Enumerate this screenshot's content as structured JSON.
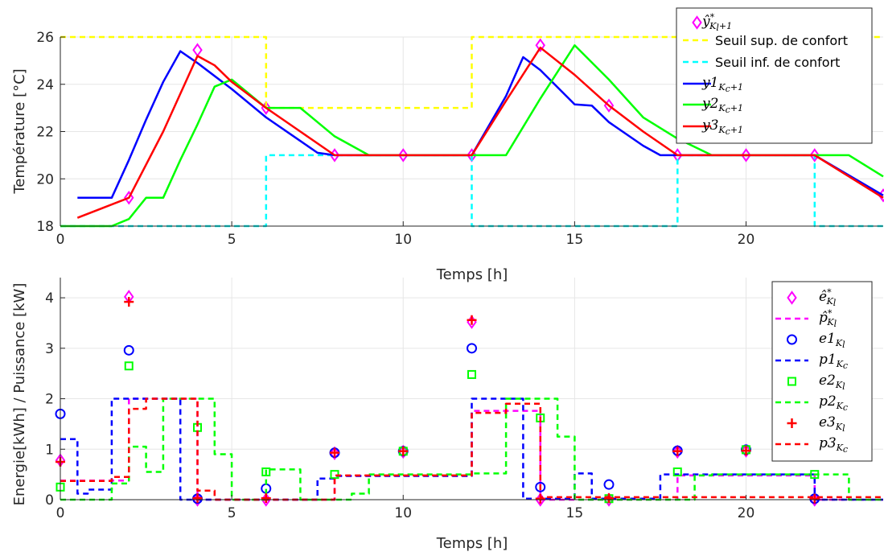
{
  "chart_data": [
    {
      "type": "line",
      "xlabel": "Temps [h]",
      "ylabel": "Température [°C]",
      "xlim": [
        0,
        24
      ],
      "ylim": [
        18,
        26
      ],
      "xticks": [
        0,
        5,
        10,
        15,
        20
      ],
      "yticks": [
        18,
        20,
        22,
        24,
        26
      ],
      "grid": true,
      "legend_position": "top-right",
      "series": [
        {
          "id": "yhat",
          "style": "markers",
          "marker": "diamond",
          "color": "#ff00ff",
          "legend": {
            "base": "ŷ",
            "sup": "*",
            "sub": "K",
            "subsub": "l",
            "tail": "+1"
          },
          "x": [
            2,
            4,
            6,
            8,
            10,
            12,
            14,
            16,
            18,
            20,
            22,
            24
          ],
          "y": [
            19.2,
            25.45,
            23.0,
            21.0,
            21.0,
            21.0,
            25.65,
            23.1,
            21.0,
            21.0,
            21.0,
            19.3
          ]
        },
        {
          "id": "seuil_sup",
          "style": "dashed",
          "color": "#ffff00",
          "legend_text": "Seuil sup. de confort",
          "x": [
            0,
            6,
            6,
            12,
            12,
            24
          ],
          "y": [
            26,
            26,
            23,
            23,
            26,
            26
          ]
        },
        {
          "id": "seuil_inf",
          "style": "dashed",
          "color": "#00ffff",
          "legend_text": "Seuil inf. de confort",
          "x": [
            0,
            6,
            6,
            12,
            12,
            18,
            18,
            22,
            22,
            24
          ],
          "y": [
            18,
            18,
            21,
            21,
            18,
            18,
            21,
            21,
            18,
            18
          ]
        },
        {
          "id": "y1",
          "style": "solid",
          "color": "#0000ff",
          "legend": {
            "base": "y1",
            "sub": "K",
            "subsub": "c",
            "tail": "+1"
          },
          "x": [
            0.5,
            1.5,
            2,
            2.5,
            3,
            3.5,
            4,
            5,
            6,
            7,
            7.5,
            8,
            12,
            13,
            13.5,
            14,
            15,
            15.5,
            16,
            17,
            17.5,
            18,
            22,
            24
          ],
          "y": [
            19.2,
            19.2,
            20.8,
            22.5,
            24.1,
            25.4,
            24.9,
            23.8,
            22.6,
            21.6,
            21.1,
            21.0,
            21.0,
            23.5,
            25.15,
            24.6,
            23.15,
            23.1,
            22.4,
            21.4,
            21.0,
            21.0,
            21.0,
            19.3
          ]
        },
        {
          "id": "y2",
          "style": "solid",
          "color": "#00ff00",
          "legend": {
            "base": "y2",
            "sub": "K",
            "subsub": "c",
            "tail": "+1"
          },
          "x": [
            0,
            0.8,
            1.5,
            2,
            2.5,
            3,
            3.5,
            4,
            4.5,
            5,
            6,
            7,
            8,
            9,
            12,
            13,
            14,
            15,
            16,
            17,
            18,
            19,
            22,
            23,
            24
          ],
          "y": [
            18.0,
            18.0,
            18.0,
            18.3,
            19.2,
            19.2,
            20.8,
            22.3,
            23.9,
            24.2,
            23.0,
            23.0,
            21.8,
            21.0,
            21.0,
            21.0,
            23.4,
            25.65,
            24.2,
            22.6,
            21.7,
            21.0,
            21.0,
            21.0,
            20.1
          ]
        },
        {
          "id": "y3",
          "style": "solid",
          "color": "#ff0000",
          "legend": {
            "base": "y3",
            "sub": "K",
            "subsub": "c",
            "tail": "+1"
          },
          "x": [
            0.5,
            2,
            3,
            4,
            4.5,
            5,
            6,
            7,
            8,
            12,
            13,
            14,
            15,
            16,
            17,
            18,
            22,
            24
          ],
          "y": [
            18.35,
            19.2,
            22.0,
            25.2,
            24.8,
            24.1,
            23.0,
            22.0,
            21.0,
            21.0,
            23.3,
            25.55,
            24.4,
            23.1,
            22.0,
            21.0,
            21.0,
            19.2
          ]
        }
      ]
    },
    {
      "type": "line",
      "xlabel": "Temps [h]",
      "ylabel": "Energie[kWh] / Puissance [kW]",
      "xlim": [
        0,
        24
      ],
      "ylim": [
        0,
        4.4
      ],
      "xticks": [
        0,
        5,
        10,
        15,
        20
      ],
      "yticks": [
        0,
        1,
        2,
        3,
        4
      ],
      "grid": true,
      "legend_position": "top-right",
      "series": [
        {
          "id": "ehat",
          "style": "markers",
          "marker": "diamond",
          "color": "#ff00ff",
          "legend": {
            "base": "ê",
            "sup": "*",
            "sub": "K",
            "subsub": "l"
          },
          "x": [
            0,
            2,
            4,
            6,
            8,
            10,
            12,
            14,
            16,
            18,
            20,
            22
          ],
          "y": [
            0.78,
            4.02,
            0.0,
            0.0,
            0.92,
            0.95,
            3.52,
            0.0,
            0.0,
            0.95,
            0.97,
            0.0
          ]
        },
        {
          "id": "phat",
          "style": "dashed",
          "color": "#ff00ff",
          "legend": {
            "base": "p̂",
            "sup": "*",
            "sub": "K",
            "subsub": "l"
          },
          "x": [
            0,
            1.5,
            1.5,
            2,
            2,
            4,
            4,
            8,
            8,
            12,
            12,
            14,
            14,
            18,
            18,
            22,
            22,
            24
          ],
          "y": [
            0.38,
            0.38,
            0.38,
            0.38,
            2.0,
            2.0,
            0.0,
            0.0,
            0.47,
            0.47,
            1.76,
            1.76,
            0.0,
            0.0,
            0.48,
            0.48,
            0.0,
            0.0
          ]
        },
        {
          "id": "e1",
          "style": "markers",
          "marker": "circle",
          "color": "#0000ff",
          "legend": {
            "base": "e1",
            "sub": "K",
            "subsub": "l"
          },
          "x": [
            0,
            2,
            4,
            6,
            8,
            10,
            12,
            14,
            16,
            18,
            20,
            22
          ],
          "y": [
            1.7,
            2.96,
            0.02,
            0.22,
            0.93,
            0.96,
            3.0,
            0.25,
            0.3,
            0.97,
            0.99,
            0.02
          ]
        },
        {
          "id": "p1",
          "style": "dashed",
          "color": "#0000ff",
          "legend": {
            "base": "p1",
            "sub": "K",
            "subsub": "c"
          },
          "x": [
            0,
            0.5,
            0.5,
            0.8,
            0.8,
            1.5,
            1.5,
            3.5,
            3.5,
            7.5,
            7.5,
            8,
            8,
            12,
            12,
            13.5,
            13.5,
            15,
            15,
            15.5,
            15.5,
            17.5,
            17.5,
            22,
            22,
            24
          ],
          "y": [
            1.2,
            1.2,
            0.12,
            0.12,
            0.2,
            0.2,
            2.0,
            2.0,
            0.0,
            0.0,
            0.42,
            0.42,
            0.47,
            0.47,
            2.0,
            2.0,
            0.02,
            0.02,
            0.52,
            0.52,
            0.02,
            0.02,
            0.5,
            0.5,
            0.0,
            0.0
          ]
        },
        {
          "id": "e2",
          "style": "markers",
          "marker": "square",
          "color": "#00ff00",
          "legend": {
            "base": "e2",
            "sub": "K",
            "subsub": "l"
          },
          "x": [
            0,
            2,
            4,
            6,
            8,
            10,
            12,
            14,
            16,
            18,
            20,
            22
          ],
          "y": [
            0.25,
            2.65,
            1.43,
            0.55,
            0.5,
            0.96,
            2.48,
            1.62,
            0.02,
            0.55,
            0.99,
            0.5
          ]
        },
        {
          "id": "p2",
          "style": "dashed",
          "color": "#00ff00",
          "legend": {
            "base": "p2",
            "sub": "K",
            "subsub": "c"
          },
          "x": [
            0,
            1.5,
            1.5,
            2,
            2,
            2.5,
            2.5,
            3,
            3,
            4.5,
            4.5,
            5,
            5,
            6,
            6,
            7,
            7,
            8.5,
            8.5,
            9,
            9,
            12,
            12,
            13,
            13,
            14.5,
            14.5,
            15,
            15,
            18.5,
            18.5,
            19,
            19,
            23,
            23,
            24
          ],
          "y": [
            0.0,
            0.0,
            0.32,
            0.32,
            1.05,
            1.05,
            0.55,
            0.55,
            2.0,
            2.0,
            0.9,
            0.9,
            0.0,
            0.0,
            0.6,
            0.6,
            0.0,
            0.0,
            0.12,
            0.12,
            0.5,
            0.5,
            0.52,
            0.52,
            2.0,
            2.0,
            1.25,
            1.25,
            0.0,
            0.0,
            0.48,
            0.48,
            0.5,
            0.5,
            0.0,
            0.0
          ]
        },
        {
          "id": "e3",
          "style": "markers",
          "marker": "plus",
          "color": "#ff0000",
          "legend": {
            "base": "e3",
            "sub": "K",
            "subsub": "l"
          },
          "x": [
            0,
            2,
            4,
            6,
            8,
            10,
            12,
            14,
            16,
            18,
            20,
            22
          ],
          "y": [
            0.75,
            3.92,
            0.03,
            0.03,
            0.93,
            0.96,
            3.56,
            0.02,
            0.03,
            0.96,
            0.97,
            0.02
          ]
        },
        {
          "id": "p3",
          "style": "dashed",
          "color": "#ff0000",
          "legend": {
            "base": "p3",
            "sub": "K",
            "subsub": "c"
          },
          "x": [
            0,
            1.5,
            1.5,
            2,
            2,
            2.5,
            2.5,
            4,
            4,
            4.5,
            4.5,
            8,
            8,
            12,
            12,
            13,
            13,
            14,
            14,
            24
          ],
          "y": [
            0.37,
            0.37,
            0.45,
            0.45,
            1.8,
            1.8,
            2.0,
            2.0,
            0.18,
            0.18,
            0.0,
            0.0,
            0.48,
            0.48,
            1.72,
            1.72,
            1.9,
            1.9,
            0.05,
            0.05
          ]
        }
      ]
    }
  ]
}
